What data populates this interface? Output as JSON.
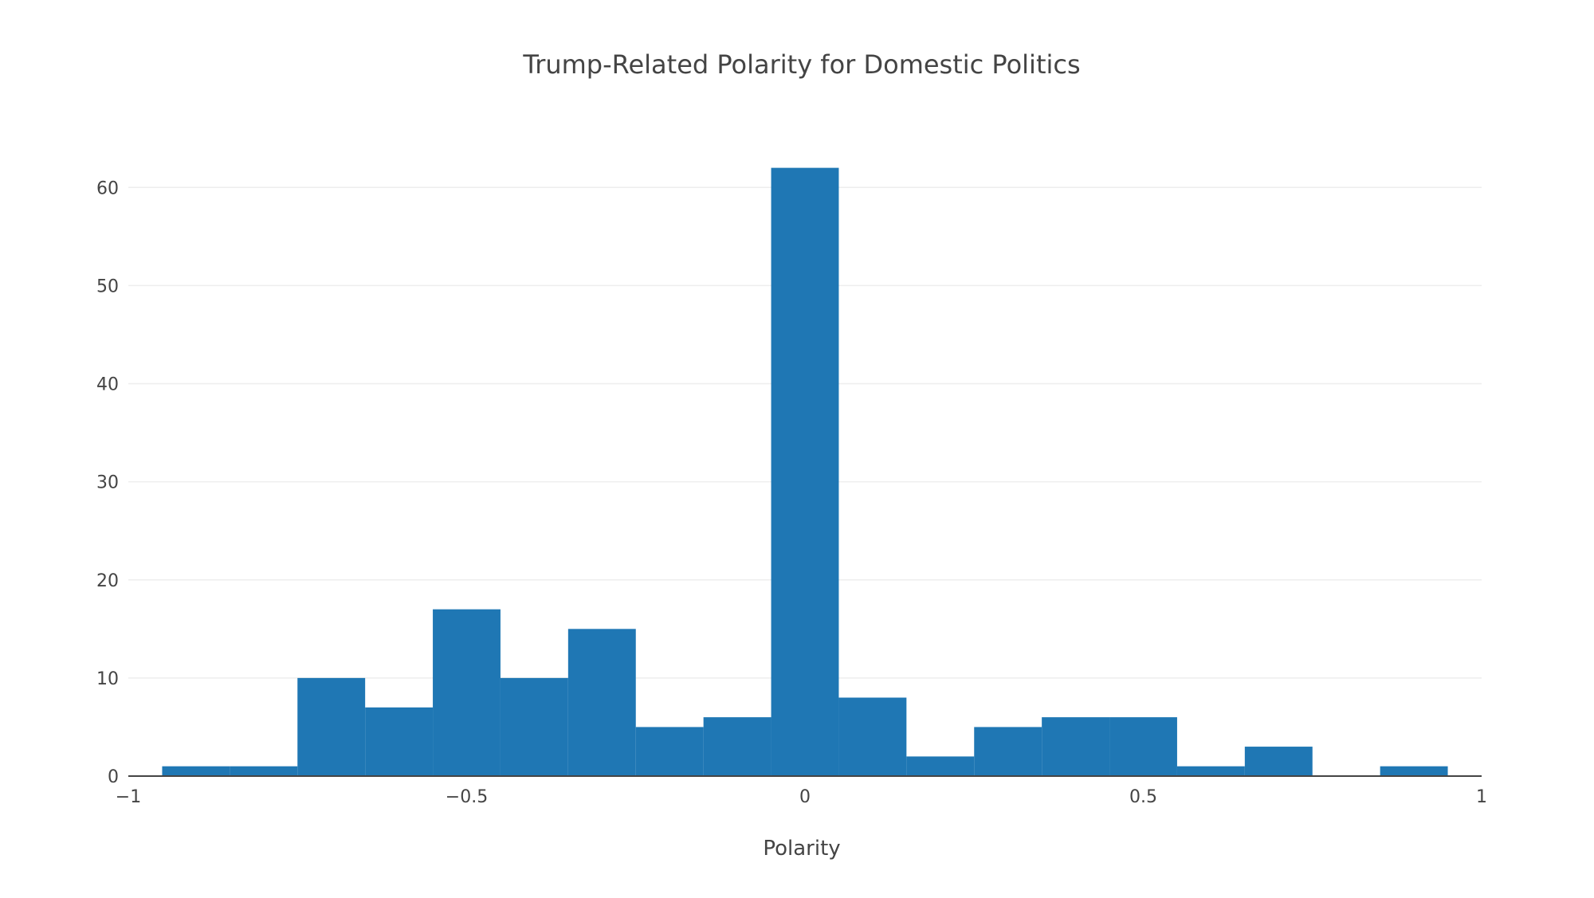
{
  "chart_data": {
    "type": "bar",
    "title": "Trump-Related Polarity for Domestic Politics",
    "xlabel": "Polarity",
    "ylabel": "",
    "bins": [
      {
        "x0": -0.95,
        "x1": -0.85,
        "count": 1
      },
      {
        "x0": -0.85,
        "x1": -0.75,
        "count": 1
      },
      {
        "x0": -0.75,
        "x1": -0.65,
        "count": 10
      },
      {
        "x0": -0.65,
        "x1": -0.55,
        "count": 7
      },
      {
        "x0": -0.55,
        "x1": -0.45,
        "count": 17
      },
      {
        "x0": -0.45,
        "x1": -0.35,
        "count": 10
      },
      {
        "x0": -0.35,
        "x1": -0.25,
        "count": 15
      },
      {
        "x0": -0.25,
        "x1": -0.15,
        "count": 5
      },
      {
        "x0": -0.15,
        "x1": -0.05,
        "count": 6
      },
      {
        "x0": -0.05,
        "x1": 0.05,
        "count": 62
      },
      {
        "x0": 0.05,
        "x1": 0.15,
        "count": 8
      },
      {
        "x0": 0.15,
        "x1": 0.25,
        "count": 2
      },
      {
        "x0": 0.25,
        "x1": 0.35,
        "count": 5
      },
      {
        "x0": 0.35,
        "x1": 0.45,
        "count": 6
      },
      {
        "x0": 0.45,
        "x1": 0.55,
        "count": 6
      },
      {
        "x0": 0.55,
        "x1": 0.65,
        "count": 1
      },
      {
        "x0": 0.65,
        "x1": 0.75,
        "count": 3
      },
      {
        "x0": 0.75,
        "x1": 0.85,
        "count": 0
      },
      {
        "x0": 0.85,
        "x1": 0.95,
        "count": 1
      }
    ],
    "xlim": [
      -1,
      1
    ],
    "ylim": [
      0,
      64
    ],
    "x_ticks": [
      {
        "value": -1,
        "label": "−1"
      },
      {
        "value": -0.5,
        "label": "−0.5"
      },
      {
        "value": 0,
        "label": "0"
      },
      {
        "value": 0.5,
        "label": "0.5"
      },
      {
        "value": 1,
        "label": "1"
      }
    ],
    "y_ticks": [
      {
        "value": 0,
        "label": "0"
      },
      {
        "value": 10,
        "label": "10"
      },
      {
        "value": 20,
        "label": "20"
      },
      {
        "value": 30,
        "label": "30"
      },
      {
        "value": 40,
        "label": "40"
      },
      {
        "value": 50,
        "label": "50"
      },
      {
        "value": 60,
        "label": "60"
      }
    ],
    "grid": true,
    "bar_color": "#1f77b4",
    "grid_color": "#eeeeee",
    "axis_color": "#444444"
  }
}
